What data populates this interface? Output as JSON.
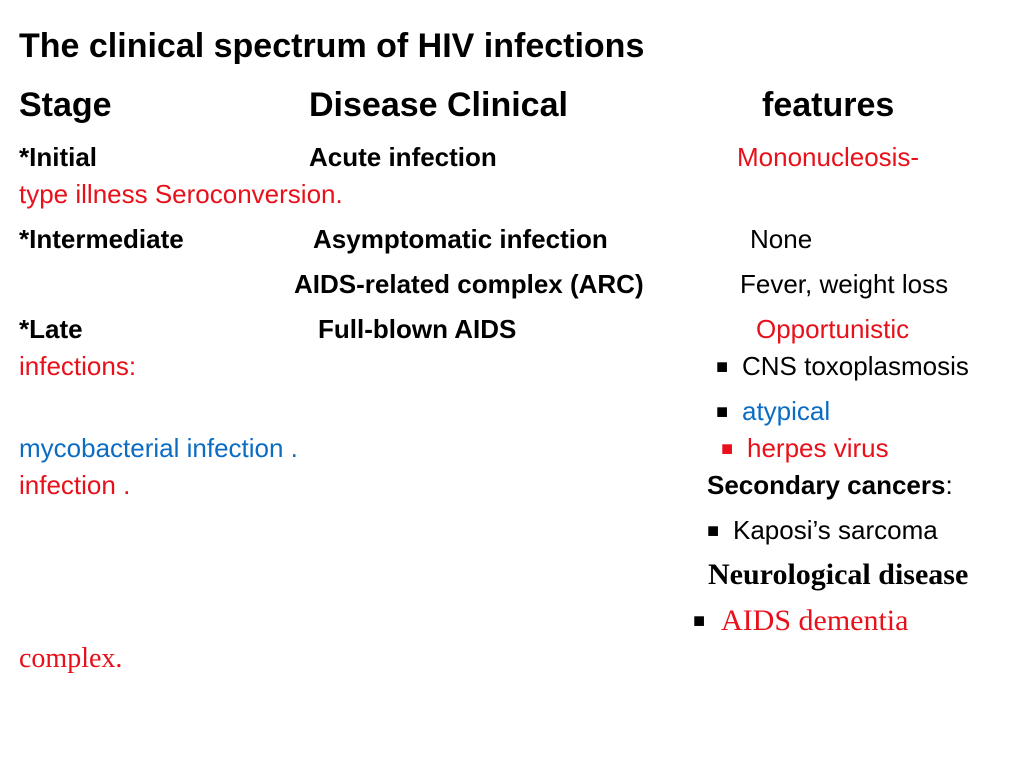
{
  "slide": {
    "title": "The clinical spectrum of HIV infections",
    "header": {
      "stage": "Stage",
      "disease_clinical": "Disease Clinical",
      "features": "features"
    },
    "rows": {
      "initial": {
        "stage": "*Initial",
        "disease": "Acute infection",
        "feature_line1": "Mononucleosis-",
        "feature_line2": "type illness Seroconversion."
      },
      "intermediate": {
        "stage": "*Intermediate",
        "disease": "Asymptomatic infection",
        "feature": "None"
      },
      "arc": {
        "disease": "AIDS-related complex (ARC)",
        "feature": "Fever, weight loss"
      },
      "late": {
        "stage": "*Late",
        "disease": "Full-blown AIDS",
        "feature_line1": "Opportunistic",
        "feature_line2": "infections:",
        "bullet": "■",
        "cns": "CNS toxoplasmosis",
        "atypical": "atypical",
        "mycobacterial": "mycobacterial infection .",
        "herpes": "herpes virus",
        "herpes_cont": "infection .",
        "secondary_cancers": "Secondary cancers",
        "colon": ":",
        "kaposi": "Kaposi’s sarcoma",
        "neuro": "Neurological disease",
        "aids_dementia": "AIDS dementia",
        "complex": "complex."
      }
    }
  }
}
